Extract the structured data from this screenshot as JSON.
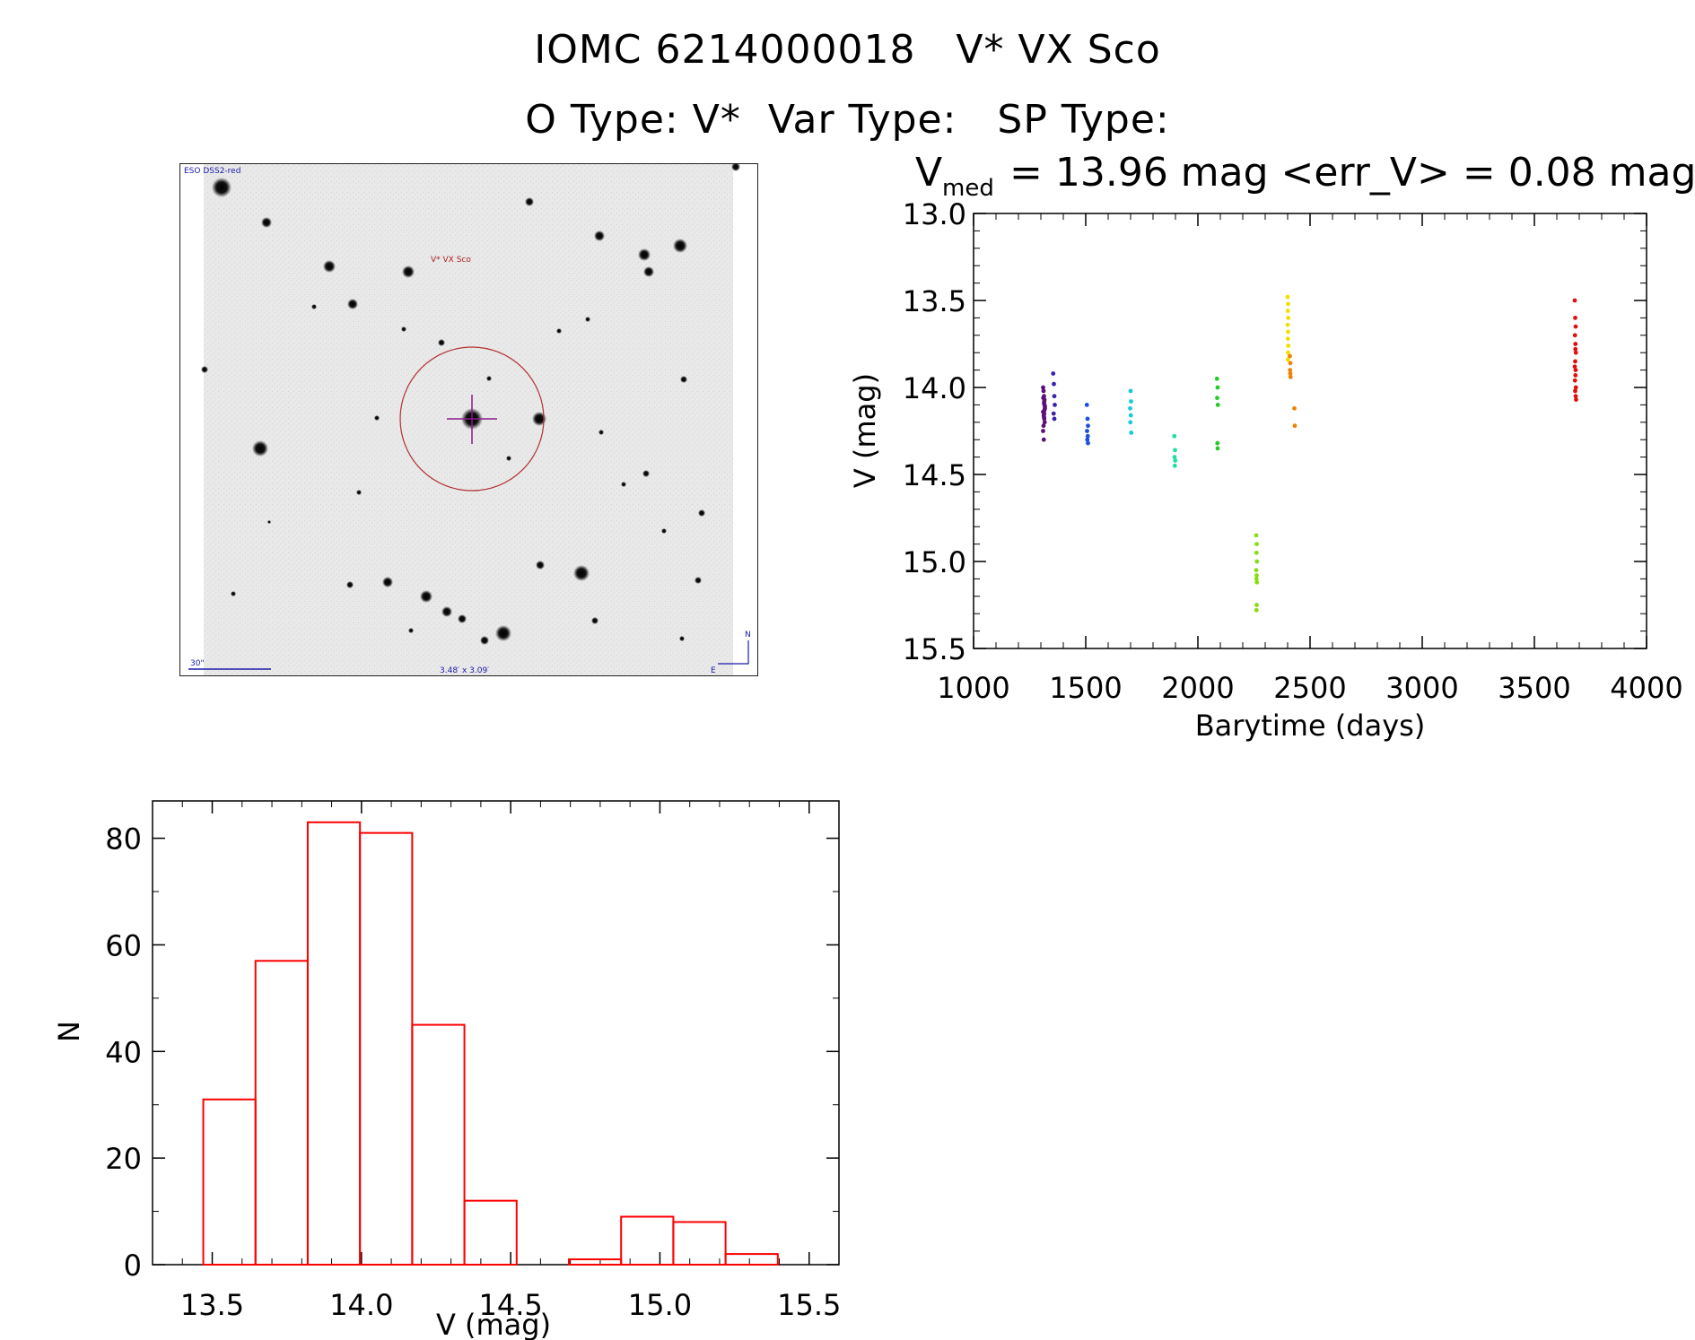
{
  "header": {
    "title_id": "IOMC 6214000018",
    "title_name": "V* VX Sco",
    "o_type_label": "O Type: V*",
    "var_type_label": "Var Type:",
    "sp_type_label": "SP Type:"
  },
  "finder": {
    "survey_label": "ESO DSS2-red",
    "object_label": "V* VX Sco",
    "scale_label": "30\"",
    "fov_label": "3.48′ x 3.09′",
    "north_label": "N",
    "east_label": "E"
  },
  "chart_data": [
    {
      "type": "scatter",
      "title_v": "V",
      "title_sub": "med",
      "title_rest": "= 13.96 mag <err_V> = 0.08 mag",
      "xlabel": "Barytime (days)",
      "ylabel": "V (mag)",
      "xlim": [
        1000,
        4000
      ],
      "ylim": [
        15.5,
        13.0
      ],
      "y_inverted": true,
      "xticks": [
        "1000",
        "1500",
        "2000",
        "2500",
        "3000",
        "3500",
        "4000"
      ],
      "yticks": [
        "13.0",
        "13.5",
        "14.0",
        "14.5",
        "15.0",
        "15.5"
      ],
      "groups": [
        {
          "color": "#5a0f7a",
          "x": [
            1310,
            1312,
            1314,
            1315,
            1316,
            1318,
            1310,
            1313,
            1315,
            1317,
            1311,
            1314,
            1316,
            1312,
            1315,
            1318,
            1310,
            1313,
            1316,
            1314
          ],
          "y": [
            14.0,
            14.02,
            14.05,
            14.08,
            14.1,
            14.12,
            14.14,
            14.16,
            14.18,
            14.2,
            14.06,
            14.09,
            14.13,
            14.22,
            14.15,
            14.11,
            14.25,
            14.3,
            14.07,
            14.17
          ]
        },
        {
          "color": "#3a1fb0",
          "x": [
            1355,
            1358,
            1360,
            1362,
            1357,
            1360
          ],
          "y": [
            13.92,
            13.98,
            14.05,
            14.1,
            14.15,
            14.18
          ]
        },
        {
          "color": "#1b4fe0",
          "x": [
            1505,
            1508,
            1510,
            1506,
            1509,
            1507,
            1510
          ],
          "y": [
            14.1,
            14.18,
            14.22,
            14.25,
            14.28,
            14.3,
            14.32
          ]
        },
        {
          "color": "#18c8e0",
          "x": [
            1700,
            1702,
            1698,
            1701,
            1699,
            1703
          ],
          "y": [
            14.02,
            14.08,
            14.12,
            14.16,
            14.2,
            14.26
          ]
        },
        {
          "color": "#20e0a0",
          "x": [
            1895,
            1898,
            1896,
            1899,
            1897
          ],
          "y": [
            14.28,
            14.36,
            14.4,
            14.42,
            14.45
          ]
        },
        {
          "color": "#22cc22",
          "x": [
            2085,
            2088,
            2086,
            2089,
            2087,
            2088
          ],
          "y": [
            13.95,
            14.0,
            14.06,
            14.1,
            14.32,
            14.35
          ]
        },
        {
          "color": "#88dd10",
          "x": [
            2260,
            2262,
            2261,
            2263,
            2260,
            2262,
            2261,
            2263,
            2262,
            2261
          ],
          "y": [
            14.85,
            14.9,
            14.95,
            15.0,
            15.05,
            15.08,
            15.1,
            15.12,
            15.25,
            15.28
          ]
        },
        {
          "color": "#f0e000",
          "x": [
            2400,
            2402,
            2401,
            2403,
            2400,
            2402,
            2401,
            2403,
            2402,
            2401
          ],
          "y": [
            13.48,
            13.52,
            13.56,
            13.6,
            13.64,
            13.68,
            13.72,
            13.76,
            13.8,
            13.84
          ]
        },
        {
          "color": "#f08000",
          "x": [
            2410,
            2412,
            2411,
            2413,
            2412,
            2430,
            2432
          ],
          "y": [
            13.82,
            13.86,
            13.9,
            13.94,
            13.92,
            14.12,
            14.22
          ]
        },
        {
          "color": "#e01010",
          "x": [
            3680,
            3682,
            3684,
            3681,
            3683,
            3685,
            3682,
            3680,
            3684,
            3683,
            3681,
            3685,
            3682,
            3684,
            3683,
            3686
          ],
          "y": [
            13.5,
            13.6,
            13.65,
            13.7,
            13.75,
            13.8,
            13.85,
            13.88,
            13.9,
            13.93,
            13.96,
            14.0,
            14.02,
            14.05,
            13.78,
            14.07
          ]
        }
      ]
    },
    {
      "type": "bar",
      "subtype": "histogram",
      "xlabel": "V (mag)",
      "ylabel": "N",
      "xlim": [
        13.3,
        15.6
      ],
      "ylim": [
        0,
        87
      ],
      "xticks": [
        "13.5",
        "14.0",
        "14.5",
        "15.0",
        "15.5"
      ],
      "yticks": [
        "0",
        "20",
        "40",
        "60",
        "80"
      ],
      "bin_edges": [
        13.47,
        13.645,
        13.82,
        13.995,
        14.17,
        14.345,
        14.52,
        14.695,
        14.87,
        15.045,
        15.22,
        15.395
      ],
      "values": [
        31,
        57,
        83,
        81,
        45,
        12,
        0,
        1,
        9,
        8,
        2
      ],
      "color": "#ff0000"
    }
  ]
}
